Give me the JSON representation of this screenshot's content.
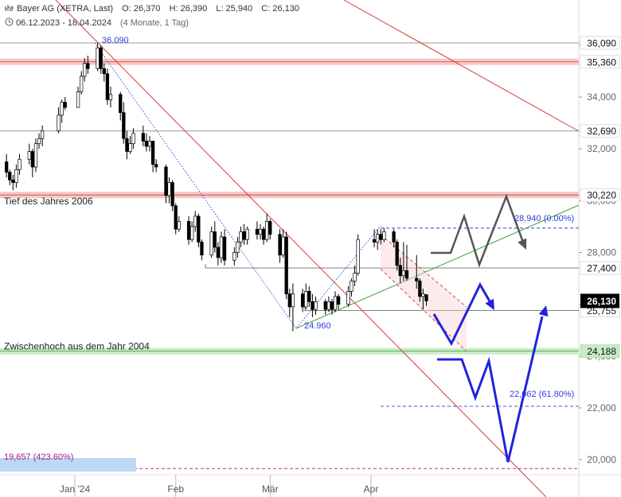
{
  "header": {
    "title": "Bayer AG (XETRA, Last)",
    "open": "O: 26,370",
    "high": "H: 26,390",
    "low": "L: 25,940",
    "close": "C: 26,130",
    "period": "06.12.2023 - 18.04.2024",
    "interval": "(4 Monate, 1 Tag)"
  },
  "chart_data": {
    "type": "candlestick",
    "title": "Bayer AG (XETRA, Last)",
    "ylim": [
      19.0,
      37.5
    ],
    "y_ticks": [
      "20,000",
      "22,000",
      "24,000",
      "26,000",
      "28,000",
      "30,000",
      "32,000",
      "34,000",
      "36,000"
    ],
    "y_tick_values": [
      20,
      22,
      24,
      26,
      28,
      30,
      32,
      34,
      36
    ],
    "x_ticks": [
      {
        "label": "Jan '24",
        "date": "2024-01-01"
      },
      {
        "label": "Feb",
        "date": "2024-02-01"
      },
      {
        "label": "Mär",
        "date": "2024-03-01"
      },
      {
        "label": "Apr",
        "date": "2024-04-01"
      }
    ],
    "x_range": [
      "2023-12-06",
      "2024-05-29"
    ],
    "last_price": {
      "label": "26,130",
      "value": 26.13
    },
    "price_tags": [
      {
        "label": "36,090",
        "value": 36.09
      },
      {
        "label": "35,360",
        "value": 35.36
      },
      {
        "label": "32,690",
        "value": 32.69
      },
      {
        "label": "30,220",
        "value": 30.22
      },
      {
        "label": "27,400",
        "value": 27.4
      },
      {
        "label": "25,755",
        "value": 25.755
      },
      {
        "label": "24,188",
        "value": 24.188
      }
    ],
    "zones": [
      {
        "value": 35.36,
        "color": "#f4b6b6",
        "label": ""
      },
      {
        "value": 30.22,
        "color": "#f4b6b6",
        "label": "Tief des Jahres 2006"
      },
      {
        "value": 24.188,
        "color": "#b7e4b7",
        "label": "Zwischenhoch aus dem Jahr 2004"
      }
    ],
    "annotations": [
      {
        "text": "36.090",
        "date": "2024-01-08",
        "value": 36.09
      },
      {
        "text": "24.960",
        "date": "2024-03-08",
        "value": 24.96
      },
      {
        "text": "28,940 (0.00%)",
        "date": "2024-04-25",
        "value": 28.94
      },
      {
        "text": "22,062 (61.80%)",
        "date": "2024-04-25",
        "value": 22.062
      },
      {
        "text": "19,657 (423.60%)",
        "date": "2023-12-06",
        "value": 19.657
      }
    ],
    "candles": [
      {
        "date": "2023-12-06",
        "o": 33.0,
        "h": 33.3,
        "l": 32.4,
        "c": 32.6
      },
      {
        "date": "2023-12-07",
        "o": 32.6,
        "h": 32.6,
        "l": 31.7,
        "c": 31.9
      },
      {
        "date": "2023-12-08",
        "o": 31.9,
        "h": 31.9,
        "l": 31.0,
        "c": 31.5
      },
      {
        "date": "2023-12-11",
        "o": 31.5,
        "h": 31.8,
        "l": 30.9,
        "c": 31.1
      },
      {
        "date": "2023-12-12",
        "o": 31.1,
        "h": 31.2,
        "l": 30.6,
        "c": 30.8
      },
      {
        "date": "2023-12-13",
        "o": 30.8,
        "h": 31.0,
        "l": 30.4,
        "c": 30.7
      },
      {
        "date": "2023-12-14",
        "o": 30.7,
        "h": 31.4,
        "l": 30.5,
        "c": 31.2
      },
      {
        "date": "2023-12-15",
        "o": 31.2,
        "h": 31.8,
        "l": 31.0,
        "c": 31.6
      },
      {
        "date": "2023-12-18",
        "o": 31.6,
        "h": 32.2,
        "l": 31.4,
        "c": 31.9
      },
      {
        "date": "2023-12-19",
        "o": 31.9,
        "h": 32.0,
        "l": 30.9,
        "c": 31.3
      },
      {
        "date": "2023-12-20",
        "o": 31.3,
        "h": 32.4,
        "l": 31.1,
        "c": 32.2
      },
      {
        "date": "2023-12-21",
        "o": 32.2,
        "h": 32.6,
        "l": 32.0,
        "c": 32.4
      },
      {
        "date": "2023-12-22",
        "o": 32.4,
        "h": 32.9,
        "l": 32.1,
        "c": 32.7
      },
      {
        "date": "2023-12-27",
        "o": 32.7,
        "h": 33.6,
        "l": 32.6,
        "c": 33.3
      },
      {
        "date": "2023-12-28",
        "o": 33.3,
        "h": 33.9,
        "l": 33.0,
        "c": 33.8
      },
      {
        "date": "2023-12-29",
        "o": 33.8,
        "h": 34.0,
        "l": 33.5,
        "c": 33.6
      },
      {
        "date": "2024-01-02",
        "o": 33.6,
        "h": 34.4,
        "l": 33.6,
        "c": 34.2
      },
      {
        "date": "2024-01-03",
        "o": 34.2,
        "h": 35.0,
        "l": 34.1,
        "c": 34.8
      },
      {
        "date": "2024-01-04",
        "o": 34.8,
        "h": 35.5,
        "l": 34.6,
        "c": 35.3
      },
      {
        "date": "2024-01-05",
        "o": 35.3,
        "h": 35.6,
        "l": 34.9,
        "c": 35.1
      },
      {
        "date": "2024-01-08",
        "o": 35.1,
        "h": 36.09,
        "l": 35.0,
        "c": 35.9
      },
      {
        "date": "2024-01-09",
        "o": 35.9,
        "h": 36.0,
        "l": 34.9,
        "c": 35.1
      },
      {
        "date": "2024-01-10",
        "o": 35.1,
        "h": 35.3,
        "l": 34.6,
        "c": 34.9
      },
      {
        "date": "2024-01-11",
        "o": 34.9,
        "h": 35.1,
        "l": 33.7,
        "c": 33.9
      },
      {
        "date": "2024-01-12",
        "o": 33.9,
        "h": 34.4,
        "l": 33.6,
        "c": 34.1
      },
      {
        "date": "2024-01-15",
        "o": 34.1,
        "h": 34.2,
        "l": 33.1,
        "c": 33.4
      },
      {
        "date": "2024-01-16",
        "o": 33.4,
        "h": 33.8,
        "l": 32.2,
        "c": 32.4
      },
      {
        "date": "2024-01-17",
        "o": 32.4,
        "h": 32.7,
        "l": 31.6,
        "c": 31.9
      },
      {
        "date": "2024-01-18",
        "o": 31.9,
        "h": 32.5,
        "l": 31.8,
        "c": 32.2
      },
      {
        "date": "2024-01-19",
        "o": 32.2,
        "h": 32.8,
        "l": 32.0,
        "c": 32.6
      },
      {
        "date": "2024-01-22",
        "o": 32.6,
        "h": 32.9,
        "l": 32.1,
        "c": 32.3
      },
      {
        "date": "2024-01-23",
        "o": 32.3,
        "h": 32.6,
        "l": 31.9,
        "c": 32.1
      },
      {
        "date": "2024-01-24",
        "o": 32.1,
        "h": 32.5,
        "l": 31.9,
        "c": 32.3
      },
      {
        "date": "2024-01-25",
        "o": 32.3,
        "h": 32.3,
        "l": 31.1,
        "c": 31.4
      },
      {
        "date": "2024-01-26",
        "o": 31.4,
        "h": 31.6,
        "l": 31.1,
        "c": 31.3
      },
      {
        "date": "2024-01-29",
        "o": 31.3,
        "h": 31.4,
        "l": 29.9,
        "c": 30.2
      },
      {
        "date": "2024-01-30",
        "o": 30.2,
        "h": 30.9,
        "l": 29.9,
        "c": 30.7
      },
      {
        "date": "2024-01-31",
        "o": 30.7,
        "h": 30.8,
        "l": 29.6,
        "c": 29.8
      },
      {
        "date": "2024-02-01",
        "o": 29.8,
        "h": 29.9,
        "l": 28.7,
        "c": 28.9
      },
      {
        "date": "2024-02-02",
        "o": 28.9,
        "h": 29.4,
        "l": 28.8,
        "c": 29.2
      },
      {
        "date": "2024-02-05",
        "o": 29.2,
        "h": 29.4,
        "l": 28.3,
        "c": 28.5
      },
      {
        "date": "2024-02-06",
        "o": 28.5,
        "h": 29.2,
        "l": 28.4,
        "c": 29.0
      },
      {
        "date": "2024-02-07",
        "o": 29.0,
        "h": 29.6,
        "l": 28.8,
        "c": 29.4
      },
      {
        "date": "2024-02-08",
        "o": 29.4,
        "h": 29.5,
        "l": 28.2,
        "c": 28.4
      },
      {
        "date": "2024-02-09",
        "o": 28.4,
        "h": 28.5,
        "l": 27.7,
        "c": 27.9
      },
      {
        "date": "2024-02-12",
        "o": 27.9,
        "h": 29.0,
        "l": 27.8,
        "c": 28.8
      },
      {
        "date": "2024-02-13",
        "o": 28.8,
        "h": 29.2,
        "l": 28.0,
        "c": 28.2
      },
      {
        "date": "2024-02-14",
        "o": 28.2,
        "h": 28.4,
        "l": 27.5,
        "c": 27.8
      },
      {
        "date": "2024-02-15",
        "o": 27.8,
        "h": 28.8,
        "l": 27.6,
        "c": 28.6
      },
      {
        "date": "2024-02-16",
        "o": 28.6,
        "h": 28.9,
        "l": 27.5,
        "c": 27.7
      },
      {
        "date": "2024-02-19",
        "o": 27.7,
        "h": 28.2,
        "l": 27.5,
        "c": 28.0
      },
      {
        "date": "2024-02-20",
        "o": 28.0,
        "h": 28.6,
        "l": 27.8,
        "c": 28.4
      },
      {
        "date": "2024-02-21",
        "o": 28.4,
        "h": 29.0,
        "l": 28.2,
        "c": 28.8
      },
      {
        "date": "2024-02-22",
        "o": 28.8,
        "h": 29.1,
        "l": 28.3,
        "c": 28.5
      },
      {
        "date": "2024-02-23",
        "o": 28.5,
        "h": 29.0,
        "l": 28.3,
        "c": 28.9
      },
      {
        "date": "2024-02-26",
        "o": 28.9,
        "h": 29.2,
        "l": 28.5,
        "c": 28.7
      },
      {
        "date": "2024-02-27",
        "o": 28.7,
        "h": 29.1,
        "l": 28.5,
        "c": 28.9
      },
      {
        "date": "2024-02-28",
        "o": 28.9,
        "h": 29.0,
        "l": 28.3,
        "c": 28.5
      },
      {
        "date": "2024-02-29",
        "o": 28.5,
        "h": 29.5,
        "l": 28.4,
        "c": 29.2
      },
      {
        "date": "2024-03-01",
        "o": 29.2,
        "h": 29.3,
        "l": 28.5,
        "c": 28.7
      },
      {
        "date": "2024-03-04",
        "o": 28.7,
        "h": 28.9,
        "l": 27.6,
        "c": 27.9
      },
      {
        "date": "2024-03-05",
        "o": 27.9,
        "h": 28.9,
        "l": 27.8,
        "c": 28.6
      },
      {
        "date": "2024-03-06",
        "o": 28.6,
        "h": 28.8,
        "l": 26.2,
        "c": 26.4
      },
      {
        "date": "2024-03-07",
        "o": 26.4,
        "h": 26.6,
        "l": 25.5,
        "c": 25.9
      },
      {
        "date": "2024-03-08",
        "o": 25.9,
        "h": 26.8,
        "l": 24.96,
        "c": 26.4
      },
      {
        "date": "2024-03-11",
        "o": 26.4,
        "h": 26.6,
        "l": 25.7,
        "c": 25.9
      },
      {
        "date": "2024-03-12",
        "o": 25.9,
        "h": 26.8,
        "l": 25.8,
        "c": 26.5
      },
      {
        "date": "2024-03-13",
        "o": 26.5,
        "h": 26.7,
        "l": 25.9,
        "c": 26.1
      },
      {
        "date": "2024-03-14",
        "o": 26.1,
        "h": 26.4,
        "l": 25.5,
        "c": 25.8
      },
      {
        "date": "2024-03-15",
        "o": 25.8,
        "h": 26.3,
        "l": 25.6,
        "c": 26.1
      },
      {
        "date": "2024-03-18",
        "o": 26.1,
        "h": 26.2,
        "l": 25.6,
        "c": 25.8
      },
      {
        "date": "2024-03-19",
        "o": 25.8,
        "h": 26.3,
        "l": 25.7,
        "c": 26.1
      },
      {
        "date": "2024-03-20",
        "o": 26.1,
        "h": 26.2,
        "l": 25.6,
        "c": 25.8
      },
      {
        "date": "2024-03-21",
        "o": 25.8,
        "h": 26.5,
        "l": 25.7,
        "c": 26.3
      },
      {
        "date": "2024-03-22",
        "o": 26.3,
        "h": 26.4,
        "l": 25.8,
        "c": 26.0
      },
      {
        "date": "2024-03-25",
        "o": 26.0,
        "h": 26.7,
        "l": 25.9,
        "c": 26.5
      },
      {
        "date": "2024-03-26",
        "o": 26.5,
        "h": 27.0,
        "l": 26.3,
        "c": 26.9
      },
      {
        "date": "2024-03-27",
        "o": 26.9,
        "h": 27.5,
        "l": 26.7,
        "c": 27.2
      },
      {
        "date": "2024-03-28",
        "o": 27.2,
        "h": 28.7,
        "l": 27.1,
        "c": 28.5
      },
      {
        "date": "2024-04-02",
        "o": 28.5,
        "h": 28.9,
        "l": 28.2,
        "c": 28.4
      },
      {
        "date": "2024-04-03",
        "o": 28.4,
        "h": 28.9,
        "l": 28.1,
        "c": 28.7
      },
      {
        "date": "2024-04-04",
        "o": 28.7,
        "h": 28.9,
        "l": 28.3,
        "c": 28.5
      },
      {
        "date": "2024-04-05",
        "o": 28.5,
        "h": 28.94,
        "l": 28.4,
        "c": 28.8
      },
      {
        "date": "2024-04-08",
        "o": 28.8,
        "h": 28.9,
        "l": 28.2,
        "c": 28.4
      },
      {
        "date": "2024-04-09",
        "o": 28.4,
        "h": 28.5,
        "l": 27.3,
        "c": 27.5
      },
      {
        "date": "2024-04-10",
        "o": 27.5,
        "h": 27.8,
        "l": 26.8,
        "c": 27.1
      },
      {
        "date": "2024-04-11",
        "o": 27.1,
        "h": 28.4,
        "l": 26.9,
        "c": 27.3
      },
      {
        "date": "2024-04-12",
        "o": 27.3,
        "h": 28.3,
        "l": 26.9,
        "c": 27.0
      },
      {
        "date": "2024-04-15",
        "o": 27.0,
        "h": 27.9,
        "l": 26.6,
        "c": 26.9
      },
      {
        "date": "2024-04-16",
        "o": 26.9,
        "h": 27.0,
        "l": 26.1,
        "c": 26.3
      },
      {
        "date": "2024-04-17",
        "o": 26.3,
        "h": 26.6,
        "l": 25.8,
        "c": 26.4
      },
      {
        "date": "2024-04-18",
        "o": 26.37,
        "h": 26.39,
        "l": 25.94,
        "c": 26.13
      }
    ]
  },
  "colors": {
    "up": "#ffffff",
    "down": "#000000",
    "trend_red": "#d63b3b",
    "support_green": "#3aa33a",
    "projection_blue": "#2222dd",
    "projection_gray": "#555555",
    "fib_blue": "#2f3fd8",
    "magenta": "#a01a8a",
    "last_tag": "#000000"
  }
}
